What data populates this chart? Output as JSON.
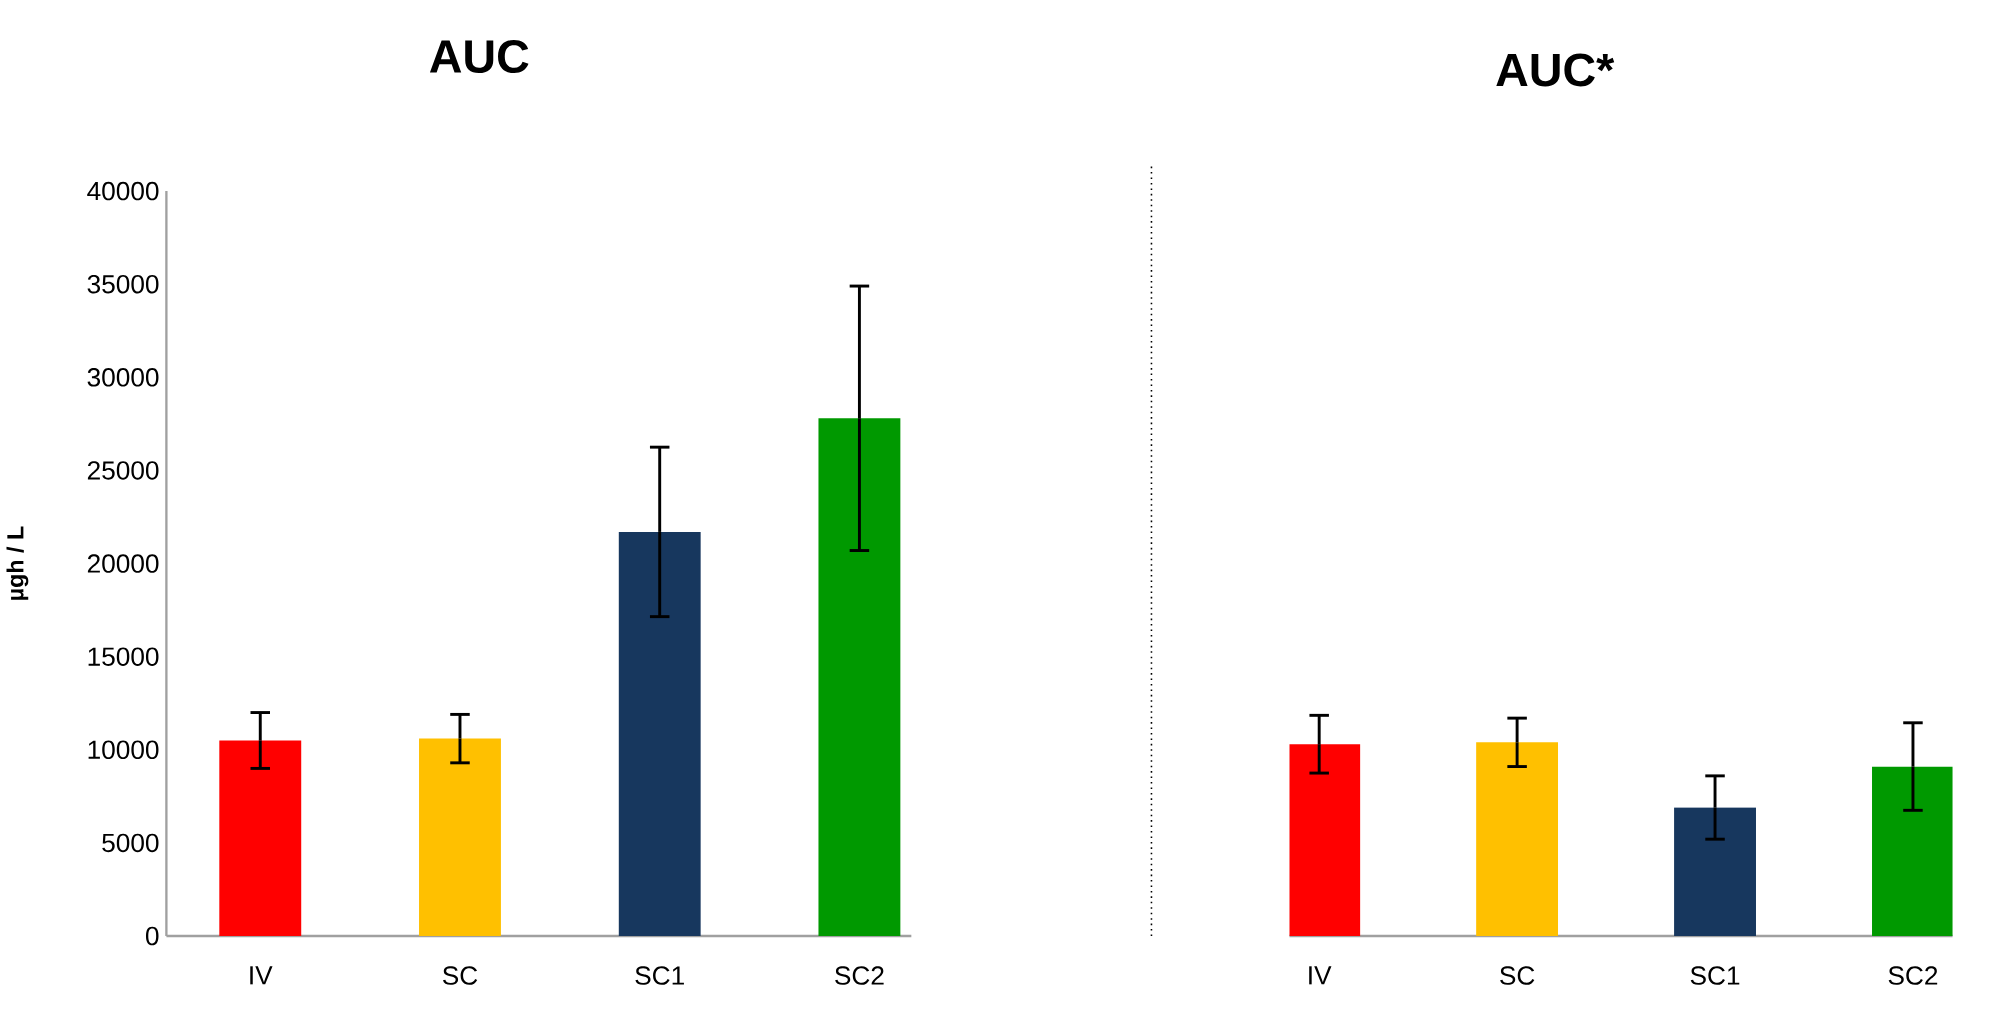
{
  "chart_data": [
    {
      "type": "bar",
      "title": "AUC",
      "ylabel": "µgh / L",
      "categories": [
        "IV",
        "SC",
        "SC1",
        "SC2"
      ],
      "values": [
        10500,
        10600,
        21700,
        27800
      ],
      "errors": [
        1500,
        1300,
        4550,
        7100
      ],
      "colors": [
        "#ff0000",
        "#ffc000",
        "#17375e",
        "#009900"
      ],
      "ylim": [
        0,
        40000
      ],
      "yticks": [
        0,
        5000,
        10000,
        15000,
        20000,
        25000,
        30000,
        35000,
        40000
      ]
    },
    {
      "type": "bar",
      "title": "AUC*",
      "categories": [
        "IV",
        "SC",
        "SC1",
        "SC2"
      ],
      "values": [
        10300,
        10400,
        6900,
        9100
      ],
      "errors": [
        1550,
        1300,
        1700,
        2350
      ],
      "colors": [
        "#ff0000",
        "#ffc000",
        "#17375e",
        "#009900"
      ],
      "ylim": [
        0,
        40000
      ],
      "yticks": [
        0,
        5000,
        10000,
        15000,
        20000,
        25000,
        30000,
        35000,
        40000
      ],
      "tick_labels": "x"
    }
  ]
}
